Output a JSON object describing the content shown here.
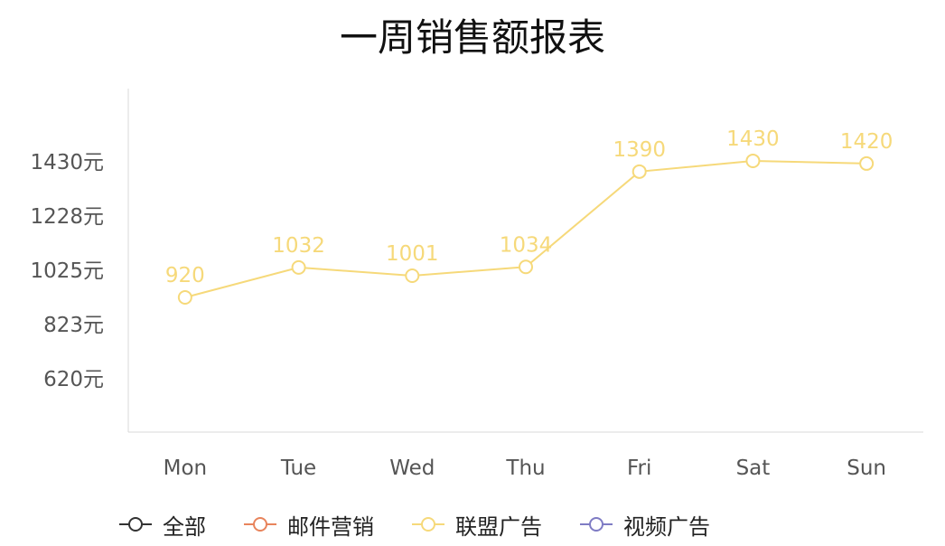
{
  "chart_data": {
    "type": "line",
    "title": "一周销售额报表",
    "categories": [
      "Mon",
      "Tue",
      "Wed",
      "Thu",
      "Fri",
      "Sat",
      "Sun"
    ],
    "y_ticks": [
      "620元",
      "823元",
      "1025元",
      "1228元",
      "1430元"
    ],
    "y_tick_values": [
      620,
      823,
      1025,
      1228,
      1430
    ],
    "ylim": [
      417,
      1700
    ],
    "grid": false,
    "legend_placement": "bottom",
    "legend": [
      {
        "label": "全部",
        "color": "#333333"
      },
      {
        "label": "邮件营销",
        "color": "#e8845c"
      },
      {
        "label": "联盟广告",
        "color": "#f6d97a"
      },
      {
        "label": "视频广告",
        "color": "#7f7cc4"
      }
    ],
    "series": [
      {
        "name": "联盟广告",
        "color": "#f6d97a",
        "values": [
          920,
          1032,
          1001,
          1034,
          1390,
          1430,
          1420
        ],
        "labels": [
          "920",
          "1032",
          "1001",
          "1034",
          "1390",
          "1430",
          "1420"
        ]
      }
    ]
  }
}
